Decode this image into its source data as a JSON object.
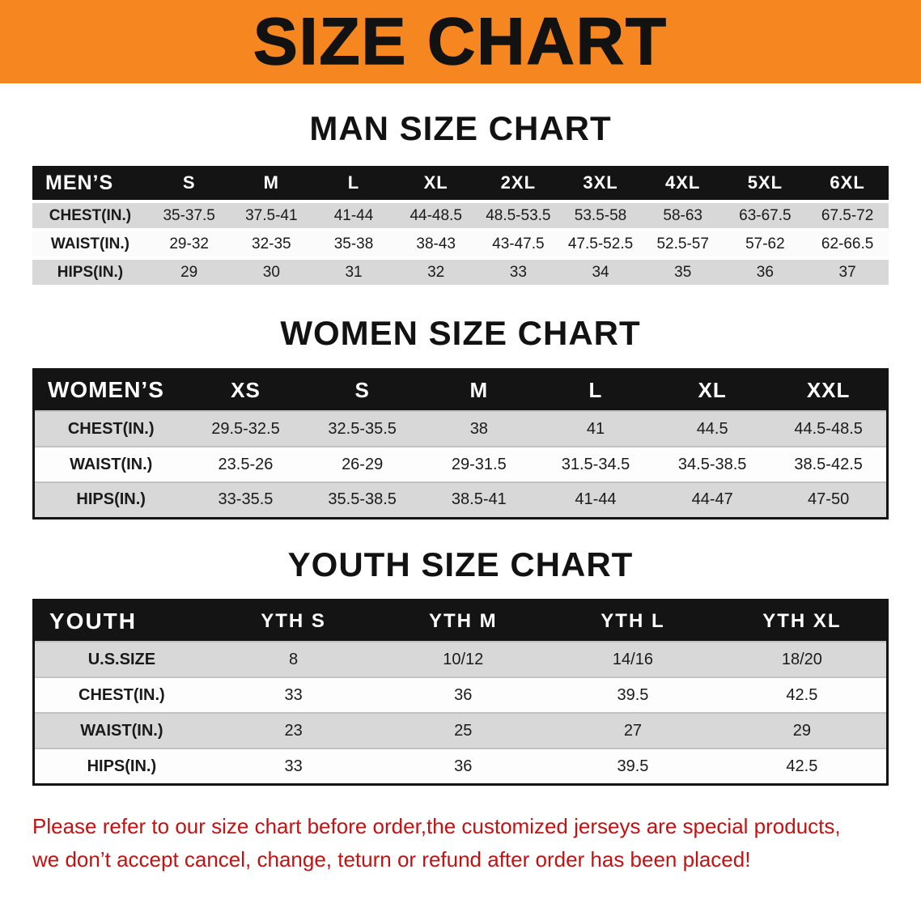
{
  "banner": {
    "title": "SIZE CHART"
  },
  "sections": {
    "men": {
      "heading": "MAN SIZE CHART",
      "table": {
        "header": [
          "MEN’S",
          "S",
          "M",
          "L",
          "XL",
          "2XL",
          "3XL",
          "4XL",
          "5XL",
          "6XL"
        ],
        "rows": [
          [
            "CHEST(IN.)",
            "35-37.5",
            "37.5-41",
            "41-44",
            "44-48.5",
            "48.5-53.5",
            "53.5-58",
            "58-63",
            "63-67.5",
            "67.5-72"
          ],
          [
            "WAIST(IN.)",
            "29-32",
            "32-35",
            "35-38",
            "38-43",
            "43-47.5",
            "47.5-52.5",
            "52.5-57",
            "57-62",
            "62-66.5"
          ],
          [
            "HIPS(IN.)",
            "29",
            "30",
            "31",
            "32",
            "33",
            "34",
            "35",
            "36",
            "37"
          ]
        ]
      }
    },
    "women": {
      "heading": "WOMEN SIZE CHART",
      "table": {
        "header": [
          "WOMEN’S",
          "XS",
          "S",
          "M",
          "L",
          "XL",
          "XXL"
        ],
        "rows": [
          [
            "CHEST(IN.)",
            "29.5-32.5",
            "32.5-35.5",
            "38",
            "41",
            "44.5",
            "44.5-48.5"
          ],
          [
            "WAIST(IN.)",
            "23.5-26",
            "26-29",
            "29-31.5",
            "31.5-34.5",
            "34.5-38.5",
            "38.5-42.5"
          ],
          [
            "HIPS(IN.)",
            "33-35.5",
            "35.5-38.5",
            "38.5-41",
            "41-44",
            "44-47",
            "47-50"
          ]
        ]
      }
    },
    "youth": {
      "heading": "YOUTH SIZE CHART",
      "table": {
        "header": [
          "YOUTH",
          "YTH S",
          "YTH M",
          "YTH L",
          "YTH XL"
        ],
        "rows": [
          [
            "U.S.SIZE",
            "8",
            "10/12",
            "14/16",
            "18/20"
          ],
          [
            "CHEST(IN.)",
            "33",
            "36",
            "39.5",
            "42.5"
          ],
          [
            "WAIST(IN.)",
            "23",
            "25",
            "27",
            "29"
          ],
          [
            "HIPS(IN.)",
            "33",
            "36",
            "39.5",
            "42.5"
          ]
        ]
      }
    }
  },
  "disclaimer": {
    "line1": "Please refer to our size chart before order,the customized jerseys are special products,",
    "line2": "we don’t accept cancel, change, teturn or refund after order has been placed!"
  },
  "colors": {
    "banner_orange": "#f6861f",
    "header_black": "#141414",
    "row_gray": "#d8d8d8",
    "row_light": "#fbfbfb",
    "disclaimer_red": "#c51111"
  }
}
